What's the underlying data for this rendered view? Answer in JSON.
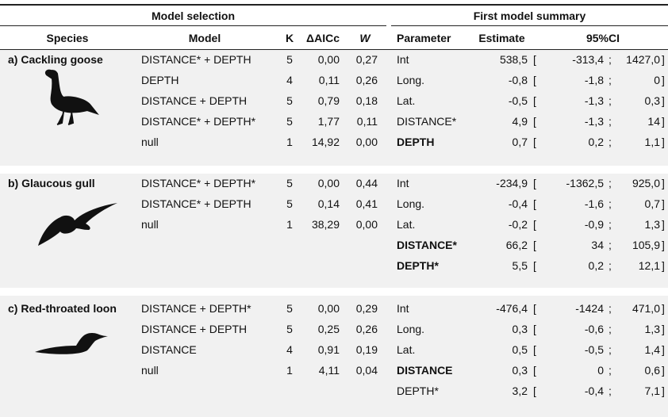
{
  "header": {
    "model_selection": "Model selection",
    "first_model_summary": "First model summary"
  },
  "columns": [
    "Species",
    "Model",
    "K",
    "ΔAICc",
    "W",
    "Parameter",
    "Estimate",
    "95%CI"
  ],
  "ci_format": {
    "open": "[",
    "sep": ";",
    "close": "]"
  },
  "species": [
    {
      "name": "a) Cackling goose",
      "models": [
        [
          "DISTANCE* + DEPTH",
          "5",
          "0,00",
          "0,27"
        ],
        [
          "DEPTH",
          "4",
          "0,11",
          "0,26"
        ],
        [
          "DISTANCE + DEPTH",
          "5",
          "0,79",
          "0,18"
        ],
        [
          "DISTANCE* + DEPTH*",
          "5",
          "1,77",
          "0,11"
        ],
        [
          "null",
          "1",
          "14,92",
          "0,00"
        ]
      ],
      "params": [
        {
          "name": "Int",
          "estimate": "538,5",
          "ci": [
            "-313,4",
            "1427,0"
          ],
          "bold": false
        },
        {
          "name": "Long.",
          "estimate": "-0,8",
          "ci": [
            "-1,8",
            "0"
          ],
          "bold": false
        },
        {
          "name": "Lat.",
          "estimate": "-0,5",
          "ci": [
            "-1,3",
            "0,3"
          ],
          "bold": false
        },
        {
          "name": "DISTANCE*",
          "estimate": "4,9",
          "ci": [
            "-1,3",
            "14"
          ],
          "bold": false
        },
        {
          "name": "DEPTH",
          "estimate": "0,7",
          "ci": [
            "0,2",
            "1,1"
          ],
          "bold": true
        }
      ]
    },
    {
      "name": "b) Glaucous gull",
      "models": [
        [
          "DISTANCE* + DEPTH*",
          "5",
          "0,00",
          "0,44"
        ],
        [
          "DISTANCE* + DEPTH",
          "5",
          "0,14",
          "0,41"
        ],
        [
          "null",
          "1",
          "38,29",
          "0,00"
        ]
      ],
      "params": [
        {
          "name": "Int",
          "estimate": "-234,9",
          "ci": [
            "-1362,5",
            "925,0"
          ],
          "bold": false
        },
        {
          "name": "Long.",
          "estimate": "-0,4",
          "ci": [
            "-1,6",
            "0,7"
          ],
          "bold": false
        },
        {
          "name": "Lat.",
          "estimate": "-0,2",
          "ci": [
            "-0,9",
            "1,3"
          ],
          "bold": false
        },
        {
          "name": "DISTANCE*",
          "estimate": "66,2",
          "ci": [
            "34",
            "105,9"
          ],
          "bold": true
        },
        {
          "name": "DEPTH*",
          "estimate": "5,5",
          "ci": [
            "0,2",
            "12,1"
          ],
          "bold": true
        }
      ]
    },
    {
      "name": "c) Red-throated loon",
      "models": [
        [
          "DISTANCE + DEPTH*",
          "5",
          "0,00",
          "0,29"
        ],
        [
          "DISTANCE + DEPTH",
          "5",
          "0,25",
          "0,26"
        ],
        [
          "DISTANCE",
          "4",
          "0,91",
          "0,19"
        ],
        [
          "null",
          "1",
          "4,11",
          "0,04"
        ]
      ],
      "params": [
        {
          "name": "Int",
          "estimate": "-476,4",
          "ci": [
            "-1424",
            "471,0"
          ],
          "bold": false
        },
        {
          "name": "Long.",
          "estimate": "0,3",
          "ci": [
            "-0,6",
            "1,3"
          ],
          "bold": false
        },
        {
          "name": "Lat.",
          "estimate": "0,5",
          "ci": [
            "-0,5",
            "1,4"
          ],
          "bold": false
        },
        {
          "name": "DISTANCE",
          "estimate": "0,3",
          "ci": [
            "0",
            "0,6"
          ],
          "bold": true
        },
        {
          "name": "DEPTH*",
          "estimate": "3,2",
          "ci": [
            "-0,4",
            "7,1"
          ],
          "bold": false
        }
      ]
    }
  ]
}
